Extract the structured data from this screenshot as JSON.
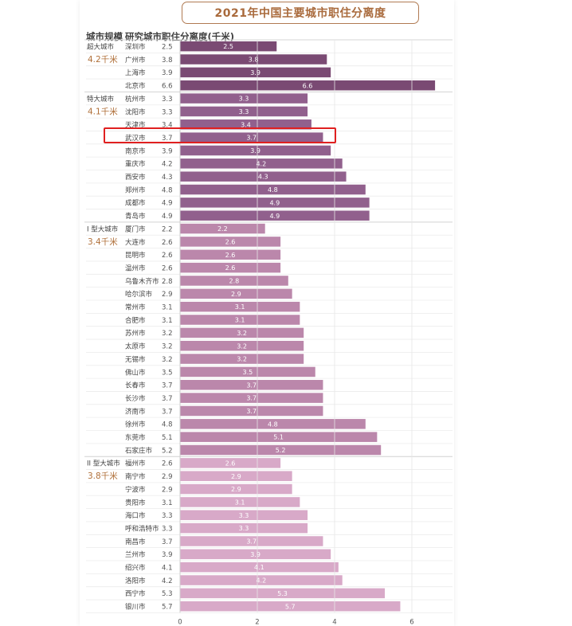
{
  "title": "2021年中国主要城市职住分离度",
  "headers": {
    "scale": "城市规模",
    "city": "研究城市",
    "value": "职住分离度(千米)"
  },
  "chart_data": {
    "type": "bar",
    "orientation": "horizontal",
    "title": "2021年中国主要城市职住分离度",
    "xlabel": "",
    "ylabel": "",
    "xlim": [
      0,
      7
    ],
    "xticks": [
      0,
      2,
      4,
      6
    ],
    "highlight": "武汉市",
    "groups": [
      {
        "name": "超大城市",
        "avg": "4.2千米",
        "color": "#7a4a73",
        "cities": [
          "深圳市",
          "广州市",
          "上海市",
          "北京市"
        ],
        "values": [
          2.5,
          3.8,
          3.9,
          6.6
        ]
      },
      {
        "name": "特大城市",
        "avg": "4.1千米",
        "color": "#91608d",
        "cities": [
          "杭州市",
          "沈阳市",
          "天津市",
          "武汉市",
          "南京市",
          "重庆市",
          "西安市",
          "郑州市",
          "成都市",
          "青岛市"
        ],
        "values": [
          3.3,
          3.3,
          3.4,
          3.7,
          3.9,
          4.2,
          4.3,
          4.8,
          4.9,
          4.9
        ]
      },
      {
        "name": "I 型大城市",
        "avg": "3.4千米",
        "color": "#bb87ab",
        "cities": [
          "厦门市",
          "大连市",
          "昆明市",
          "温州市",
          "乌鲁木齐市",
          "哈尔滨市",
          "常州市",
          "合肥市",
          "苏州市",
          "太原市",
          "无锡市",
          "佛山市",
          "长春市",
          "长沙市",
          "济南市",
          "徐州市",
          "东莞市",
          "石家庄市"
        ],
        "values": [
          2.2,
          2.6,
          2.6,
          2.6,
          2.8,
          2.9,
          3.1,
          3.1,
          3.2,
          3.2,
          3.2,
          3.5,
          3.7,
          3.7,
          3.7,
          4.8,
          5.1,
          5.2
        ]
      },
      {
        "name": "II 型大城市",
        "avg": "3.8千米",
        "color": "#d8a9c8",
        "cities": [
          "福州市",
          "南宁市",
          "宁波市",
          "贵阳市",
          "海口市",
          "呼和浩特市",
          "南昌市",
          "兰州市",
          "绍兴市",
          "洛阳市",
          "西宁市",
          "银川市"
        ],
        "values": [
          2.6,
          2.9,
          2.9,
          3.1,
          3.3,
          3.3,
          3.7,
          3.9,
          4.1,
          4.2,
          5.3,
          5.7
        ]
      }
    ]
  }
}
